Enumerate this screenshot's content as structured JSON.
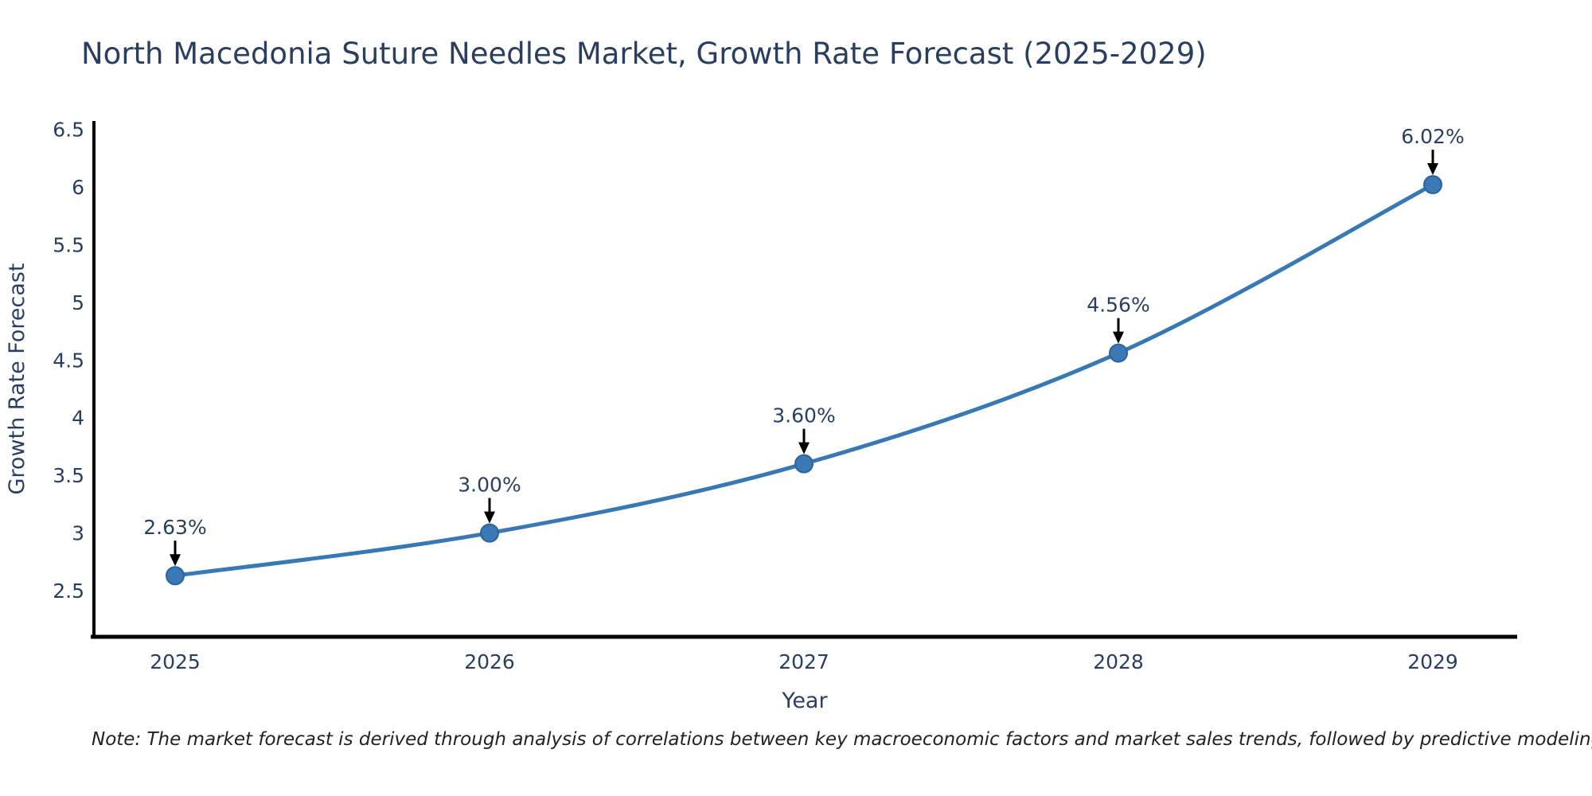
{
  "title": "North Macedonia Suture Needles Market, Growth Rate Forecast (2025-2029)",
  "note": "Note: The market forecast is derived through analysis of correlations between key macroeconomic factors and market sales trends, followed by predictive modeling to project future sales",
  "chart_data": {
    "type": "line",
    "x": [
      "2025",
      "2026",
      "2027",
      "2028",
      "2029"
    ],
    "values": [
      2.63,
      3.0,
      3.6,
      4.56,
      6.02
    ],
    "point_labels": [
      "2.63%",
      "3.00%",
      "3.60%",
      "4.56%",
      "6.02%"
    ],
    "series_name": "Growth Rate Forecast",
    "title": "North Macedonia Suture Needles Market, Growth Rate Forecast (2025-2029)",
    "xlabel": "Year",
    "ylabel": "Growth Rate Forecast",
    "yticks": [
      "2.5",
      "3",
      "3.5",
      "4",
      "4.5",
      "5",
      "5.5",
      "6",
      "6.5"
    ],
    "ylim": [
      2.1,
      6.6
    ],
    "grid": false,
    "legend_position": "none",
    "annotations": "each point labeled with percent value and a downward black arrow",
    "colors": {
      "line": "#3878b4",
      "marker_fill": "#3a79b5",
      "marker_edge": "#2d6499",
      "axis": "#000000",
      "tick_text": "#2a3f5f",
      "title_text": "#2a3f5f",
      "annotation_text": "#2a3f5f",
      "arrow": "#000000",
      "note_text": "#222222",
      "background": "#ffffff"
    }
  }
}
